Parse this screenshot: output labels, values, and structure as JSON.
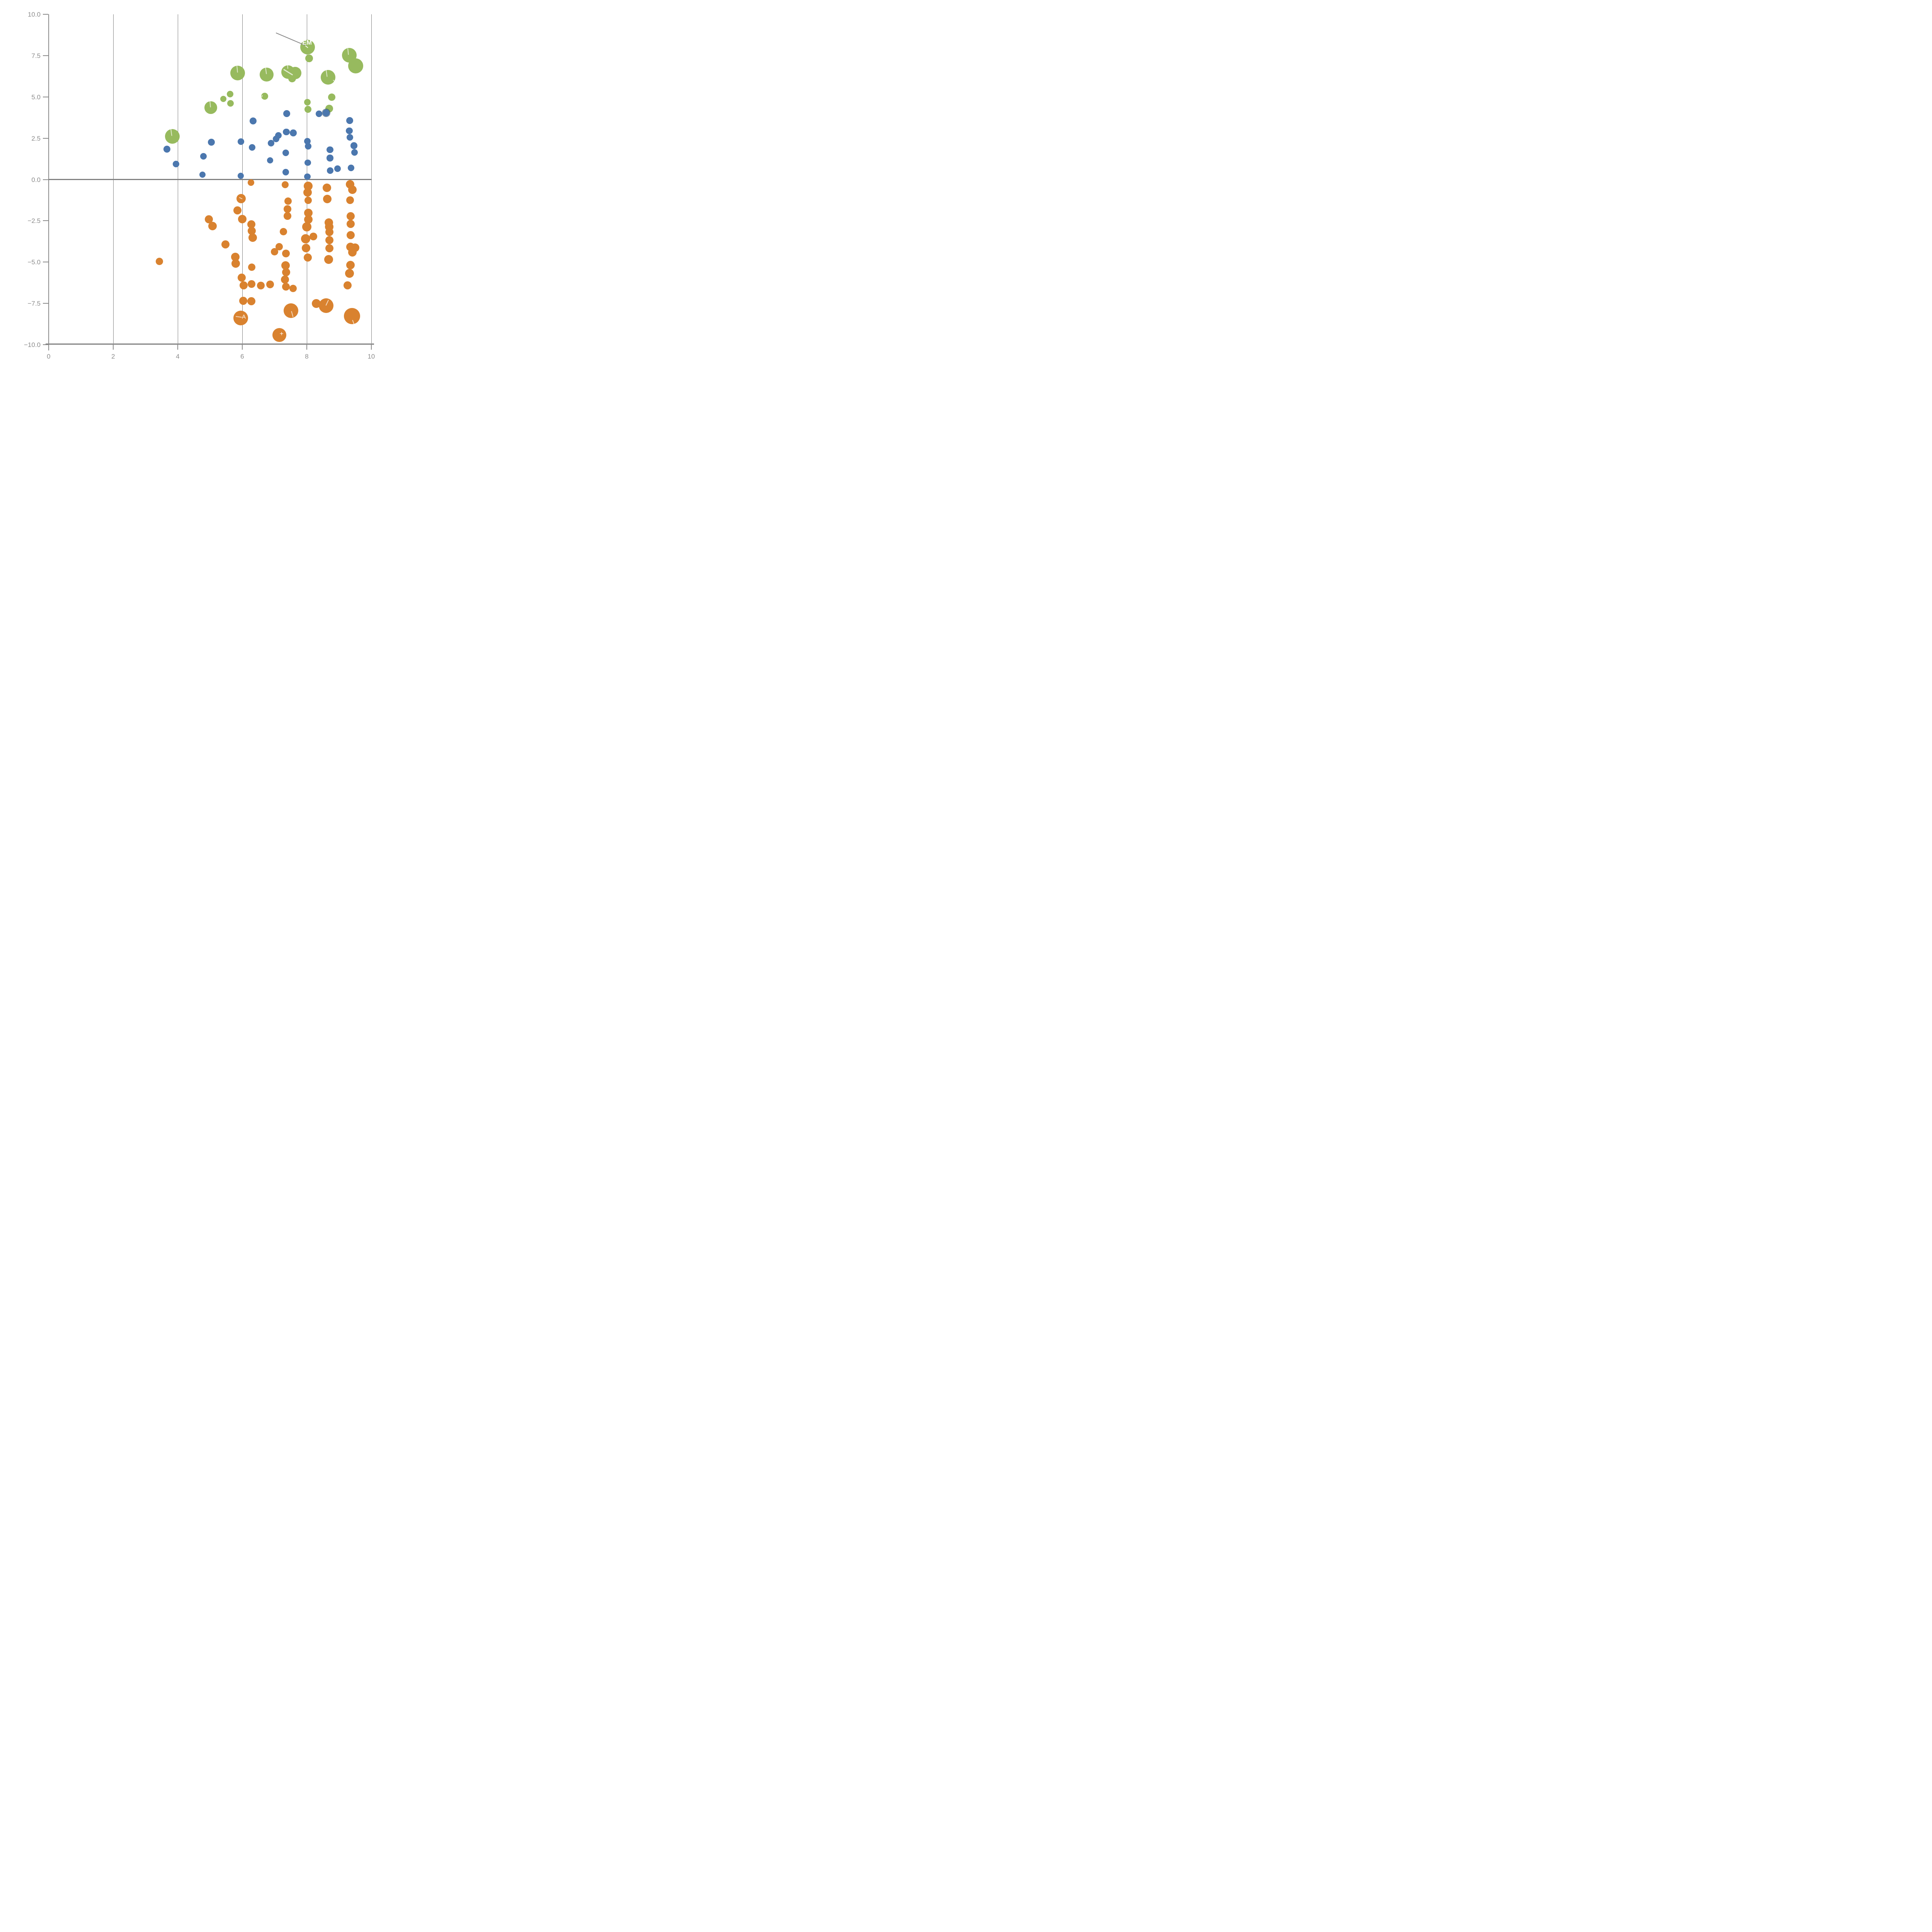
{
  "chart_data": {
    "type": "scatter",
    "title": "",
    "xlabel": "",
    "ylabel": "",
    "xlim": [
      0,
      10
    ],
    "ylim": [
      -10,
      10
    ],
    "grid": "vertical-only",
    "legend_position": "none",
    "x_ticks": [
      0,
      2,
      4,
      6,
      8,
      10
    ],
    "x_tick_labels": [
      "0",
      "2",
      "4",
      "6",
      "8",
      "10"
    ],
    "y_ticks": [
      10.0,
      7.5,
      5.0,
      2.5,
      0.0,
      -2.5,
      -5.0,
      -7.5,
      -10.0
    ],
    "y_tick_labels": [
      "10.0",
      "7.5",
      "5.0",
      "2.5",
      "0.0",
      "−2.5",
      "−5.0",
      "−7.5",
      "−10.0"
    ],
    "gridline_x_values": [
      2,
      4,
      6,
      8,
      10
    ],
    "zero_line_y": 0,
    "colors": {
      "green": "#97BA5E",
      "blue": "#4B77AE",
      "orange": "#D9822F",
      "axis": "#8a8a8a",
      "grid": "#5a5a5a",
      "tick_label": "#8c8c8c",
      "leader_gray": "#8a8a8a",
      "white": "rgba(255,255,255,0.9)",
      "white_soft": "rgba(255,255,255,0.7)"
    },
    "series": [
      {
        "name": "green",
        "color_key": "green",
        "points": [
          [
            3.83,
            2.62,
            19
          ],
          [
            5.03,
            4.35,
            16.5
          ],
          [
            5.42,
            4.88,
            8
          ],
          [
            5.62,
            5.18,
            8.5
          ],
          [
            5.64,
            4.62,
            8.5
          ],
          [
            5.86,
            6.45,
            19
          ],
          [
            6.76,
            6.36,
            18
          ],
          [
            6.7,
            5.05,
            9
          ],
          [
            7.42,
            6.52,
            17.5
          ],
          [
            7.64,
            6.45,
            16
          ],
          [
            7.55,
            6.12,
            10
          ],
          [
            8.03,
            8.02,
            19
          ],
          [
            8.07,
            7.35,
            10
          ],
          [
            8.02,
            4.68,
            8.5
          ],
          [
            8.04,
            4.25,
            9
          ],
          [
            8.66,
            6.2,
            19
          ],
          [
            8.78,
            5.0,
            9.5
          ],
          [
            8.7,
            4.3,
            10
          ],
          [
            9.32,
            7.52,
            19
          ],
          [
            9.52,
            6.88,
            19.5
          ]
        ]
      },
      {
        "name": "blue",
        "color_key": "blue",
        "points": [
          [
            3.67,
            1.85,
            9
          ],
          [
            3.95,
            0.95,
            8.5
          ],
          [
            4.8,
            1.4,
            8.5
          ],
          [
            4.77,
            0.3,
            8
          ],
          [
            5.04,
            2.25,
            9
          ],
          [
            6.34,
            3.55,
            9
          ],
          [
            5.96,
            2.3,
            8.5
          ],
          [
            6.31,
            1.95,
            8.5
          ],
          [
            5.95,
            0.22,
            8
          ],
          [
            6.87,
            1.15,
            8
          ],
          [
            6.9,
            2.2,
            8.5
          ],
          [
            7.05,
            2.45,
            8.5
          ],
          [
            7.12,
            2.68,
            8.5
          ],
          [
            7.38,
            4.0,
            9
          ],
          [
            7.37,
            2.88,
            8.8
          ],
          [
            7.58,
            2.82,
            8.8
          ],
          [
            7.35,
            1.62,
            8.5
          ],
          [
            7.35,
            0.45,
            8.5
          ],
          [
            8.02,
            2.32,
            8.8
          ],
          [
            8.04,
            2.02,
            8.6
          ],
          [
            8.03,
            1.02,
            8.4
          ],
          [
            8.02,
            0.18,
            8.4
          ],
          [
            8.38,
            3.98,
            8.8
          ],
          [
            8.6,
            4.05,
            9,
            1
          ],
          [
            8.72,
            1.8,
            8.8
          ],
          [
            8.72,
            1.3,
            8.6
          ],
          [
            8.73,
            0.55,
            8.4
          ],
          [
            8.95,
            0.65,
            8.4
          ],
          [
            9.33,
            3.58,
            9
          ],
          [
            9.32,
            2.95,
            8.8
          ],
          [
            9.34,
            2.55,
            8.8
          ],
          [
            9.46,
            2.05,
            8.8
          ],
          [
            9.48,
            1.65,
            8.6
          ],
          [
            9.37,
            0.7,
            8.6
          ]
        ]
      },
      {
        "name": "orange",
        "color_key": "orange",
        "points": [
          [
            6.27,
            -0.18,
            8.5
          ],
          [
            7.33,
            -0.32,
            9
          ],
          [
            8.05,
            -0.4,
            11.5
          ],
          [
            8.03,
            -0.78,
            11
          ],
          [
            8.62,
            -0.5,
            11
          ],
          [
            9.34,
            -0.3,
            11
          ],
          [
            9.42,
            -0.62,
            11
          ],
          [
            8.05,
            -1.25,
            9.5
          ],
          [
            8.64,
            -1.18,
            11
          ],
          [
            9.34,
            -1.25,
            10
          ],
          [
            5.97,
            -1.15,
            12
          ],
          [
            5.85,
            -1.88,
            10.5
          ],
          [
            6.0,
            -2.4,
            11
          ],
          [
            4.97,
            -2.42,
            10.5
          ],
          [
            5.08,
            -2.82,
            11
          ],
          [
            6.28,
            -2.72,
            10.5
          ],
          [
            6.3,
            -3.12,
            10.5
          ],
          [
            6.32,
            -3.52,
            11
          ],
          [
            5.48,
            -3.92,
            10.5
          ],
          [
            5.79,
            -4.68,
            11
          ],
          [
            5.8,
            -5.1,
            11
          ],
          [
            3.43,
            -4.97,
            9.5
          ],
          [
            6.29,
            -5.3,
            9.5
          ],
          [
            5.99,
            -5.95,
            10.5
          ],
          [
            6.05,
            -6.42,
            10.5
          ],
          [
            6.29,
            -6.32,
            10
          ],
          [
            6.58,
            -6.42,
            10
          ],
          [
            6.87,
            -6.35,
            10
          ],
          [
            6.03,
            -7.35,
            10.5
          ],
          [
            6.28,
            -7.38,
            10.5
          ],
          [
            5.96,
            -8.38,
            19
          ],
          [
            7.42,
            -1.32,
            9.5
          ],
          [
            7.4,
            -1.8,
            10
          ],
          [
            7.4,
            -2.22,
            10
          ],
          [
            7.28,
            -3.15,
            9.5
          ],
          [
            7.15,
            -4.08,
            9.5
          ],
          [
            7.0,
            -4.38,
            9.5
          ],
          [
            7.36,
            -4.48,
            10
          ],
          [
            7.34,
            -5.2,
            11
          ],
          [
            7.36,
            -5.62,
            10.5
          ],
          [
            7.33,
            -6.05,
            10.5
          ],
          [
            7.36,
            -6.5,
            10
          ],
          [
            7.58,
            -6.6,
            9.5
          ],
          [
            7.51,
            -7.95,
            19
          ],
          [
            7.15,
            -9.42,
            18
          ],
          [
            8.05,
            -2.02,
            11
          ],
          [
            8.05,
            -2.42,
            11
          ],
          [
            8.0,
            -2.86,
            12
          ],
          [
            7.97,
            -3.58,
            12
          ],
          [
            7.98,
            -4.15,
            11
          ],
          [
            8.03,
            -4.72,
            10.5
          ],
          [
            8.21,
            -3.46,
            10
          ],
          [
            8.68,
            -2.6,
            11
          ],
          [
            8.7,
            -2.86,
            11
          ],
          [
            8.7,
            -3.18,
            10.5
          ],
          [
            8.7,
            -3.67,
            10.5
          ],
          [
            8.7,
            -4.16,
            10.5
          ],
          [
            8.68,
            -4.85,
            11.5
          ],
          [
            8.3,
            -7.52,
            11.5
          ],
          [
            8.6,
            -7.65,
            19
          ],
          [
            9.36,
            -2.21,
            10.5
          ],
          [
            9.36,
            -2.7,
            10.5
          ],
          [
            9.36,
            -3.37,
            10.5
          ],
          [
            9.35,
            -4.08,
            11
          ],
          [
            9.5,
            -4.12,
            11
          ],
          [
            9.41,
            -4.42,
            11
          ],
          [
            9.36,
            -5.18,
            11
          ],
          [
            9.33,
            -5.68,
            11.5
          ],
          [
            9.26,
            -6.42,
            10.5
          ],
          [
            9.4,
            -8.28,
            21
          ]
        ]
      }
    ],
    "annotations": {
      "texts": [
        {
          "label": "EM",
          "x": 8.01,
          "y": 8.27,
          "size": 16.5,
          "weight": 600
        },
        {
          "label": "A",
          "x": 6.05,
          "y": -8.32,
          "size": 15,
          "weight": 400
        },
        {
          "label": "+",
          "x": 7.22,
          "y": -9.35,
          "size": 17,
          "weight": 400
        }
      ],
      "leader_lines": [
        {
          "color_key": "leader_gray",
          "x1": 7.05,
          "y1": 8.87,
          "x2": 7.95,
          "y2": 8.12,
          "w": 2.4
        },
        {
          "color_key": "white",
          "x1": 7.95,
          "y1": 8.12,
          "x2": 8.03,
          "y2": 7.99,
          "w": 2.4
        },
        {
          "color_key": "white_soft",
          "x1": 3.79,
          "y1": 3.07,
          "x2": 3.82,
          "y2": 2.64,
          "w": 2.2
        },
        {
          "color_key": "white_soft",
          "x1": 5.0,
          "y1": 4.78,
          "x2": 5.02,
          "y2": 4.37,
          "w": 2.2
        },
        {
          "color_key": "white_soft",
          "x1": 5.83,
          "y1": 6.9,
          "x2": 5.85,
          "y2": 6.48,
          "w": 2.2
        },
        {
          "color_key": "white_soft",
          "x1": 6.72,
          "y1": 6.8,
          "x2": 6.75,
          "y2": 6.38,
          "w": 2.2
        },
        {
          "color_key": "white_soft",
          "x1": 7.4,
          "y1": 7.02,
          "x2": 7.41,
          "y2": 6.72,
          "w": 2.2
        },
        {
          "color_key": "white_soft",
          "x1": 7.28,
          "y1": 6.68,
          "x2": 7.57,
          "y2": 6.33,
          "w": 2.5
        },
        {
          "color_key": "white_soft",
          "x1": 8.6,
          "y1": 6.64,
          "x2": 8.63,
          "y2": 6.22,
          "w": 2.2
        },
        {
          "color_key": "white_soft",
          "x1": 8.82,
          "y1": 6.02,
          "x2": 8.87,
          "y2": 5.93,
          "w": 2.0
        },
        {
          "color_key": "white_soft",
          "x1": 6.62,
          "y1": 5.12,
          "x2": 6.6,
          "y2": 4.99,
          "w": 2.0
        },
        {
          "color_key": "white_soft",
          "x1": 9.27,
          "y1": 7.95,
          "x2": 9.29,
          "y2": 7.56,
          "w": 2.2
        },
        {
          "color_key": "white_soft",
          "x1": 8.67,
          "y1": -7.3,
          "x2": 8.59,
          "y2": -7.63,
          "w": 2.4
        },
        {
          "color_key": "white_soft",
          "x1": 9.42,
          "y1": -8.52,
          "x2": 9.47,
          "y2": -8.78,
          "w": 2.4
        },
        {
          "color_key": "white_soft",
          "x1": 7.52,
          "y1": -7.98,
          "x2": 7.57,
          "y2": -8.33,
          "w": 2.4
        },
        {
          "color_key": "white_soft",
          "x1": 5.8,
          "y1": -8.3,
          "x2": 5.99,
          "y2": -8.35,
          "w": 2.2
        },
        {
          "color_key": "white_soft",
          "x1": 5.91,
          "y1": -1.08,
          "x2": 6.01,
          "y2": -1.17,
          "w": 2.0
        }
      ]
    }
  }
}
